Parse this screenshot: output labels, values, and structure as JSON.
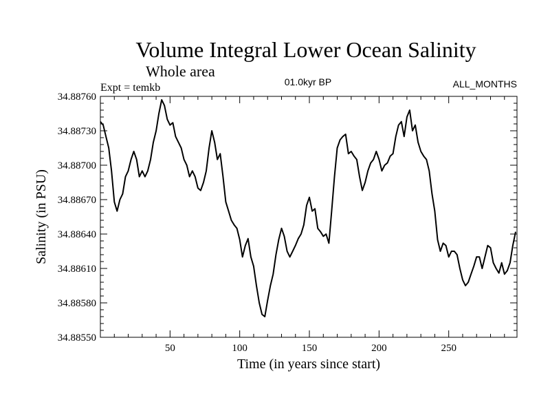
{
  "chart_data": {
    "type": "line",
    "title": "Volume Integral Lower Ocean Salinity",
    "subtitle": "Whole area",
    "annotation_left": "Expt = temkb",
    "annotation_center": "01.0kyr BP",
    "annotation_right": "ALL_MONTHS",
    "xlabel": "Time (in years since start)",
    "ylabel": "Salinity (in PSU)",
    "xlim": [
      0,
      299
    ],
    "ylim": [
      34.8855,
      34.8876
    ],
    "xticks": [
      50,
      100,
      150,
      200,
      250
    ],
    "xtick_labels": [
      "50",
      "100",
      "150",
      "200",
      "250"
    ],
    "yticks": [
      34.8855,
      34.8858,
      34.8861,
      34.8864,
      34.8867,
      34.887,
      34.8873,
      34.8876
    ],
    "ytick_labels": [
      "34.88550",
      "34.88580",
      "34.88610",
      "34.88640",
      "34.88670",
      "34.88700",
      "34.88730",
      "34.88760"
    ],
    "series": [
      {
        "name": "salinity",
        "color": "#000000",
        "x": [
          0,
          2,
          4,
          6,
          8,
          10,
          12,
          14,
          16,
          18,
          20,
          22,
          24,
          26,
          28,
          30,
          32,
          34,
          36,
          38,
          40,
          42,
          44,
          46,
          48,
          50,
          52,
          54,
          56,
          58,
          60,
          62,
          64,
          66,
          68,
          70,
          72,
          74,
          76,
          78,
          80,
          82,
          84,
          86,
          88,
          90,
          92,
          94,
          96,
          98,
          100,
          102,
          104,
          106,
          108,
          110,
          112,
          114,
          116,
          118,
          120,
          122,
          124,
          126,
          128,
          130,
          132,
          134,
          136,
          138,
          140,
          142,
          144,
          146,
          148,
          150,
          152,
          154,
          156,
          158,
          160,
          162,
          164,
          166,
          168,
          170,
          172,
          174,
          176,
          178,
          180,
          182,
          184,
          186,
          188,
          190,
          192,
          194,
          196,
          198,
          200,
          202,
          204,
          206,
          208,
          210,
          212,
          214,
          216,
          218,
          220,
          222,
          224,
          226,
          228,
          230,
          232,
          234,
          236,
          238,
          240,
          242,
          244,
          246,
          248,
          250,
          252,
          254,
          256,
          258,
          260,
          262,
          264,
          266,
          268,
          270,
          272,
          274,
          276,
          278,
          280,
          282,
          284,
          286,
          288,
          290,
          292,
          294,
          296,
          298
        ],
        "values": [
          34.88738,
          34.88735,
          34.88725,
          34.88715,
          34.88695,
          34.88668,
          34.8866,
          34.8867,
          34.88675,
          34.8869,
          34.88695,
          34.88705,
          34.88712,
          34.88705,
          34.8869,
          34.88695,
          34.8869,
          34.88695,
          34.88705,
          34.8872,
          34.8873,
          34.88745,
          34.88757,
          34.88752,
          34.8874,
          34.88735,
          34.88737,
          34.88725,
          34.8872,
          34.88715,
          34.88705,
          34.887,
          34.8869,
          34.88695,
          34.8869,
          34.8868,
          34.88678,
          34.88685,
          34.88695,
          34.88715,
          34.8873,
          34.8872,
          34.88705,
          34.8871,
          34.8869,
          34.88668,
          34.8866,
          34.88652,
          34.88648,
          34.88645,
          34.88635,
          34.8862,
          34.8863,
          34.88636,
          34.8862,
          34.88612,
          34.88595,
          34.8858,
          34.8857,
          34.88568,
          34.88582,
          34.88595,
          34.88605,
          34.88622,
          34.88635,
          34.88645,
          34.88638,
          34.88625,
          34.8862,
          34.88625,
          34.8863,
          34.88636,
          34.8864,
          34.88648,
          34.88665,
          34.88672,
          34.8866,
          34.88662,
          34.88645,
          34.88642,
          34.88638,
          34.8864,
          34.88632,
          34.8866,
          34.8869,
          34.88715,
          34.88722,
          34.88725,
          34.88727,
          34.8871,
          34.88712,
          34.88708,
          34.88705,
          34.8869,
          34.88678,
          34.88685,
          34.88695,
          34.88702,
          34.88705,
          34.88712,
          34.88705,
          34.88695,
          34.887,
          34.88702,
          34.88708,
          34.8871,
          34.88725,
          34.88735,
          34.88738,
          34.88725,
          34.88742,
          34.88748,
          34.8873,
          34.88735,
          34.8872,
          34.88712,
          34.88708,
          34.88705,
          34.88695,
          34.88675,
          34.8866,
          34.88635,
          34.88625,
          34.88632,
          34.8863,
          34.8862,
          34.88625,
          34.88625,
          34.88622,
          34.8861,
          34.886,
          34.88595,
          34.88598,
          34.88605,
          34.88612,
          34.8862,
          34.8862,
          34.8861,
          34.8862,
          34.8863,
          34.88628,
          34.88615,
          34.8861,
          34.88606,
          34.88615,
          34.88605,
          34.88608,
          34.88615,
          34.8863,
          34.88642
        ]
      }
    ]
  }
}
